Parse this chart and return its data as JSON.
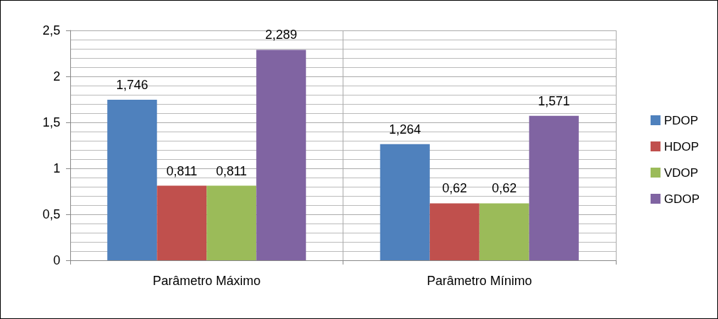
{
  "chart_data": {
    "type": "bar",
    "categories": [
      "Parâmetro Máximo",
      "Parâmetro Mínimo"
    ],
    "series": [
      {
        "name": "PDOP",
        "color": "#4f81bd",
        "values": [
          1.746,
          1.264
        ],
        "value_labels": [
          "1,746",
          "1,264"
        ]
      },
      {
        "name": "HDOP",
        "color": "#c0504d",
        "values": [
          0.811,
          0.62
        ],
        "value_labels": [
          "0,811",
          "0,62"
        ]
      },
      {
        "name": "VDOP",
        "color": "#9bbb59",
        "values": [
          0.811,
          0.62
        ],
        "value_labels": [
          "0,811",
          "0,62"
        ]
      },
      {
        "name": "GDOP",
        "color": "#8064a2",
        "values": [
          2.289,
          1.571
        ],
        "value_labels": [
          "2,289",
          "1,571"
        ]
      }
    ],
    "ylim": [
      0,
      2.5
    ],
    "yticks": [
      0,
      {
        "value": 0.5,
        "label": "0,5"
      },
      1,
      {
        "value": 1.5,
        "label": "1,5"
      },
      2,
      {
        "value": 2.5,
        "label": "2,5"
      }
    ],
    "grid": true,
    "legend": "right"
  }
}
